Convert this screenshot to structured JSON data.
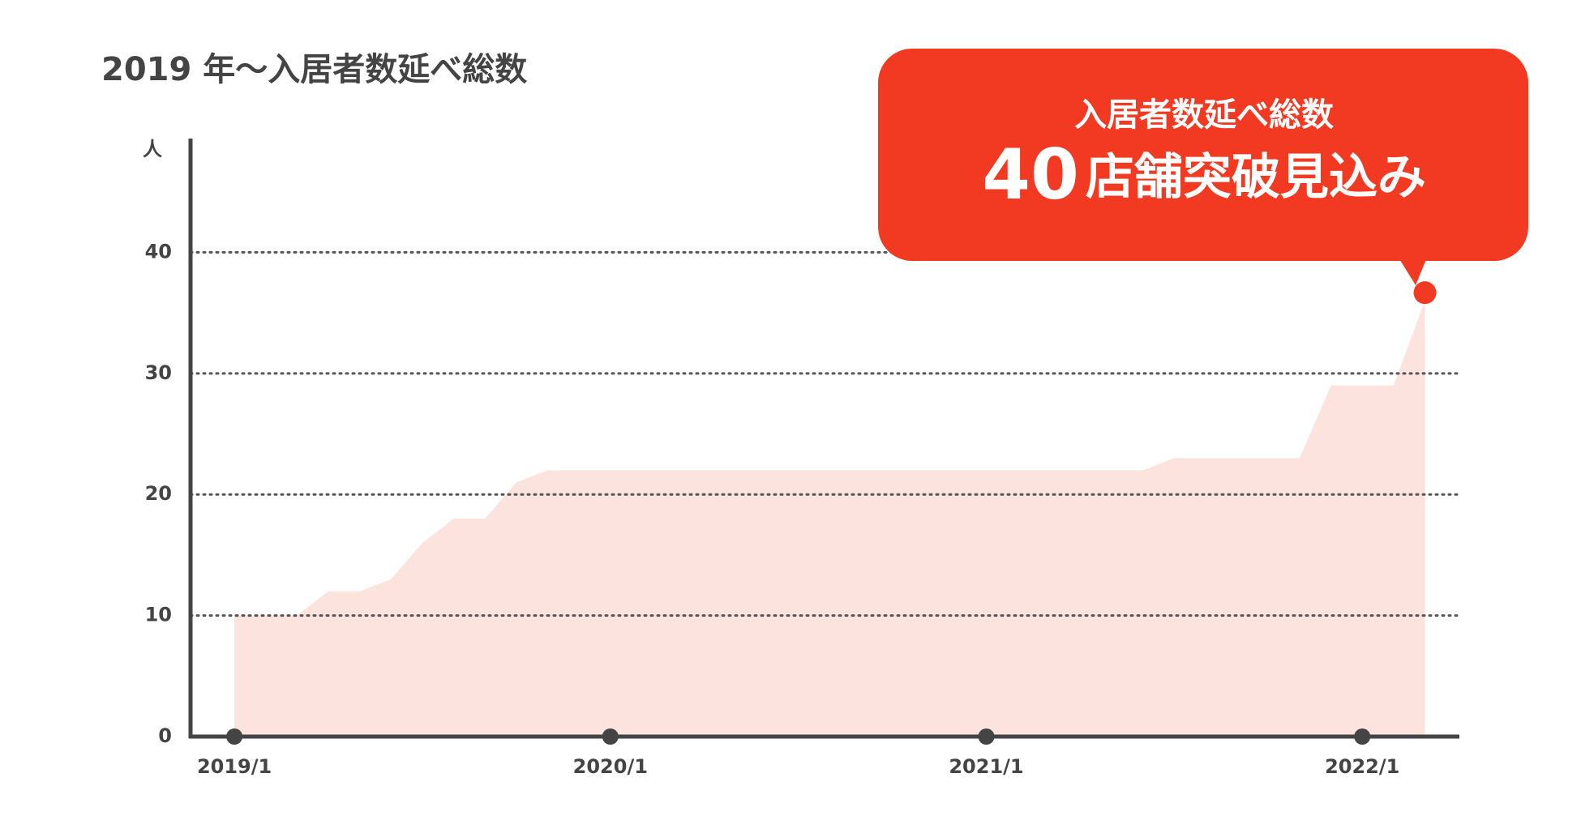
{
  "chart_data": {
    "type": "area",
    "title": "2019 年〜入居者数延べ総数",
    "y_label": "人",
    "x": [
      0,
      2,
      3,
      4,
      5,
      6,
      7,
      8,
      9,
      10,
      29,
      30,
      34,
      35,
      37,
      38
    ],
    "series": [
      {
        "color": "#fde3de",
        "values": [
          10,
          10,
          12,
          12,
          13,
          16,
          18,
          18,
          21,
          22,
          22,
          23,
          23,
          29,
          29,
          36
        ]
      }
    ],
    "xlim": [
      -1.4,
      39.1
    ],
    "xticks": [
      {
        "value": 0,
        "label": "2019/1"
      },
      {
        "value": 12,
        "label": "2020/1"
      },
      {
        "value": 24,
        "label": "2021/1"
      },
      {
        "value": 36,
        "label": "2022/1"
      }
    ],
    "ylim": [
      0,
      49.4
    ],
    "yticks": [
      0,
      10,
      20,
      30,
      40
    ],
    "grid": true,
    "annotation": {
      "line1": "入居者数延べ総数",
      "number": "40",
      "text": "店舗突破見込み",
      "color": "#f23a22"
    }
  }
}
